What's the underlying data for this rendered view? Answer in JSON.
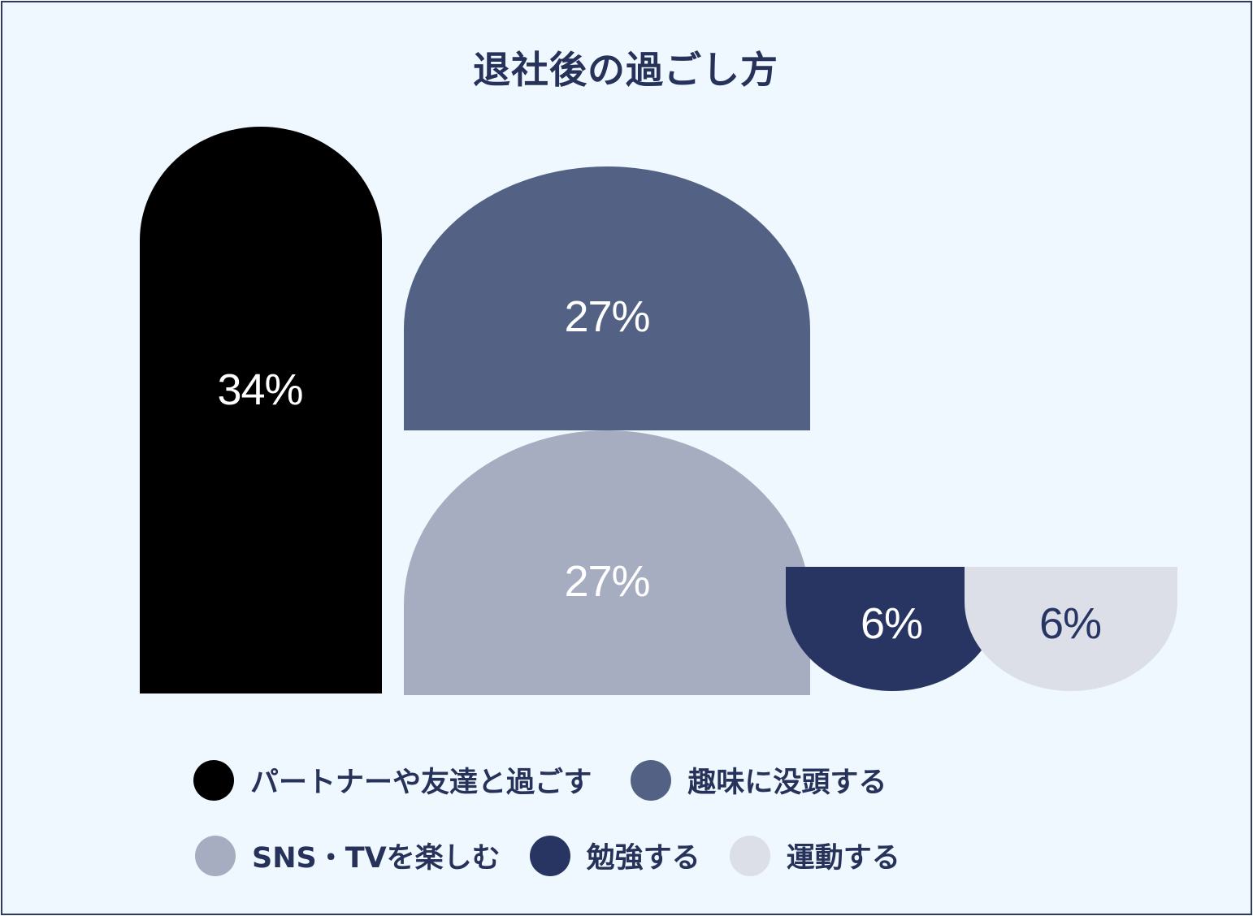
{
  "chart_data": {
    "type": "bar",
    "title": "退社後の過ごし方",
    "categories": [
      "パートナーや友達と過ごす",
      "趣味に没頭する",
      "SNS・TVを楽しむ",
      "勉強する",
      "運動する"
    ],
    "values": [
      34,
      27,
      27,
      6,
      6
    ],
    "value_labels": [
      "34%",
      "27%",
      "27%",
      "6%",
      "6%"
    ],
    "colors": [
      "#000000",
      "#536185",
      "#a7adc1",
      "#283563",
      "#dcdfe8"
    ],
    "label_colors": [
      "#ffffff",
      "#ffffff",
      "#ffffff",
      "#ffffff",
      "#283563"
    ],
    "legend_position": "bottom"
  }
}
